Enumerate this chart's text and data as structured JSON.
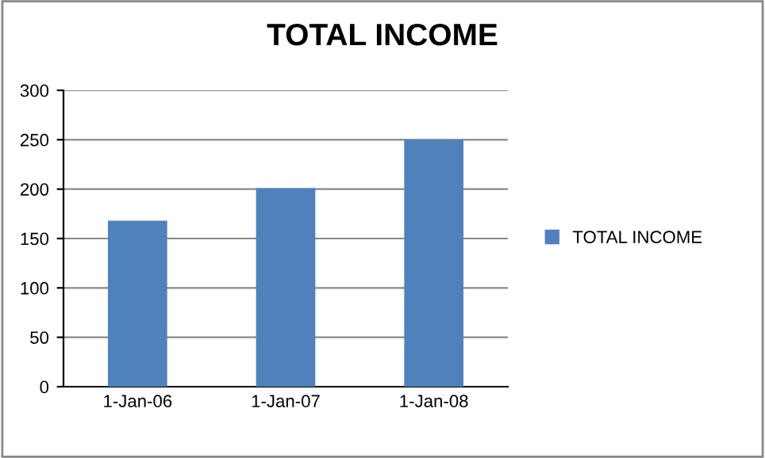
{
  "chart_data": {
    "type": "bar",
    "title": "TOTAL INCOME",
    "categories": [
      "1-Jan-06",
      "1-Jan-07",
      "1-Jan-08"
    ],
    "series": [
      {
        "name": "TOTAL INCOME",
        "color": "#4f81bd",
        "values": [
          168,
          201,
          250
        ]
      }
    ],
    "ylim": [
      0,
      300
    ],
    "yticks": [
      0,
      50,
      100,
      150,
      200,
      250,
      300
    ],
    "grid": "y",
    "legend": "right"
  }
}
